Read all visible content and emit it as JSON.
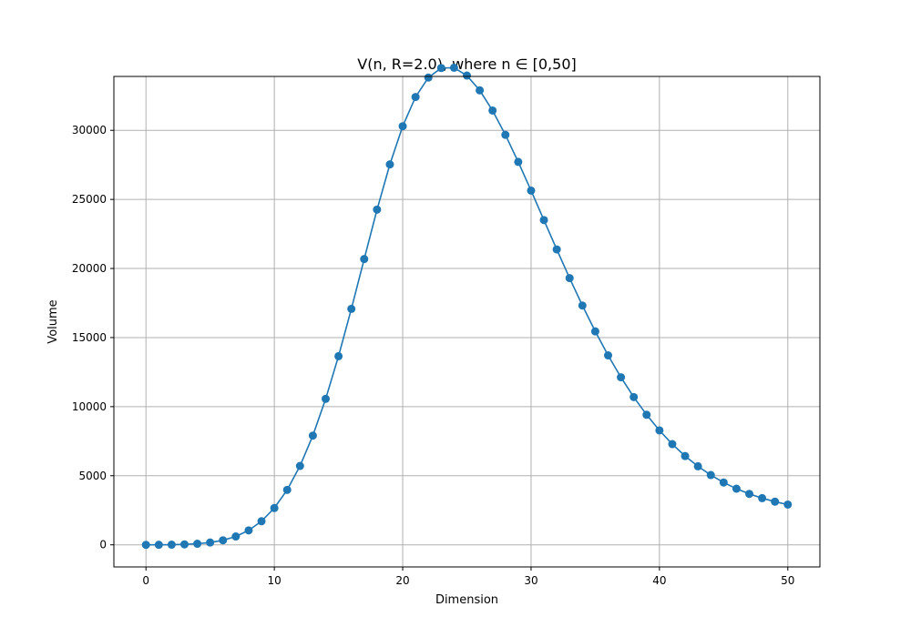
{
  "chart_data": {
    "type": "line",
    "title": "V(n, R=2.0), where n ∈ [0,50]",
    "xlabel": "Dimension",
    "ylabel": "Volume",
    "xlim": [
      -2.5,
      52.5
    ],
    "ylim": [
      -1600,
      33900
    ],
    "xticks": [
      0,
      10,
      20,
      30,
      40,
      50
    ],
    "yticks": [
      0,
      5000,
      10000,
      15000,
      20000,
      25000,
      30000
    ],
    "grid": true,
    "colors": {
      "series": "#1f77b4",
      "grid": "#b0b0b0",
      "axes": "#000000"
    },
    "x": [
      0,
      1,
      2,
      3,
      4,
      5,
      6,
      7,
      8,
      9,
      10,
      11,
      12,
      13,
      14,
      15,
      16,
      17,
      18,
      19,
      20,
      21,
      22,
      23,
      24,
      25,
      26,
      27,
      28,
      29,
      30,
      31,
      32,
      33,
      34,
      35,
      36,
      37,
      38,
      39,
      40,
      41,
      42,
      43,
      44,
      45,
      46,
      47,
      48,
      49,
      50
    ],
    "series": [
      {
        "marker": "circle",
        "values": [
          1,
          4,
          12.57,
          33.51,
          78.96,
          168.4,
          330.1,
          604.7,
          1043.7,
          1708.3,
          2663.8,
          3977.1,
          5708.8,
          7904.4,
          10564.6,
          13652.9,
          17076.9,
          20684.8,
          24260.2,
          27534.5,
          30296.7,
          32412.9,
          33818.0,
          34510.1,
          34531.4,
          33961.9,
          32894.8,
          31432.1,
          29672.5,
          27713.9,
          25637.5,
          23505.5,
          21380.0,
          19305.4,
          17319.2,
          15447.4,
          13712.7,
          12125.9,
          10693.0,
          9412.3,
          8280.4,
          7287.5,
          6426.5,
          5683.6,
          5049.5,
          4512.3,
          4062.0,
          3687.3,
          3377.5,
          3122.4,
          2913.1
        ]
      }
    ]
  }
}
